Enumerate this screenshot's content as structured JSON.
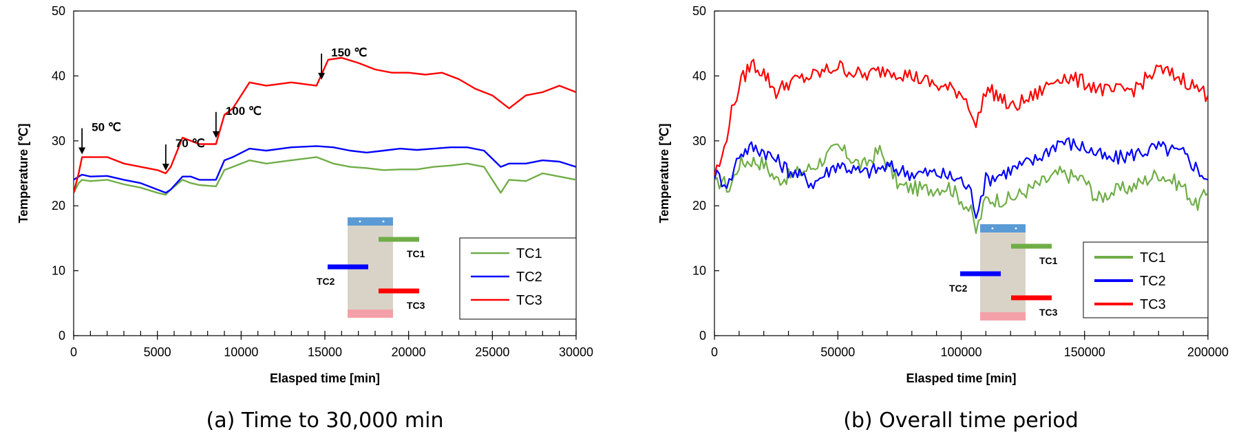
{
  "colors": {
    "TC1": "#70AD47",
    "TC2": "#0000FF",
    "TC3": "#FF0000",
    "cover": "#5B9BD5",
    "concrete": "#D9D3C7",
    "base": "#F4A0A8"
  },
  "chart_data": [
    {
      "type": "line",
      "caption": "(a) Time to 30,000 min",
      "xlabel": "Elasped time [min]",
      "ylabel": "Temperature [℃]",
      "xlim": [
        0,
        30000
      ],
      "ylim": [
        0,
        50
      ],
      "xticks": [
        0,
        5000,
        10000,
        15000,
        20000,
        25000,
        30000
      ],
      "yticks": [
        0,
        10,
        20,
        30,
        40,
        50
      ],
      "legend": [
        "TC1",
        "TC2",
        "TC3"
      ],
      "legend_position": "bottom-right",
      "sensor_labels": [
        "TC1",
        "TC2",
        "TC3"
      ],
      "annotations": [
        {
          "text": "50 ℃",
          "x": 500,
          "y": 27.5
        },
        {
          "text": "70 ℃",
          "x": 5500,
          "y": 25
        },
        {
          "text": "100 ℃",
          "x": 8500,
          "y": 30
        },
        {
          "text": "150 ℃",
          "x": 14800,
          "y": 39
        }
      ],
      "series": [
        {
          "name": "TC1",
          "x": [
            0,
            300,
            500,
            1000,
            2000,
            3000,
            4000,
            5000,
            5500,
            5800,
            6500,
            7000,
            7500,
            8500,
            9000,
            9500,
            10500,
            11500,
            13000,
            14500,
            15500,
            16500,
            17500,
            18500,
            19500,
            20500,
            21500,
            22500,
            23500,
            24500,
            25500,
            26000,
            27000,
            28000,
            29000,
            30000
          ],
          "y": [
            22,
            23.5,
            24,
            23.8,
            24,
            23.3,
            22.8,
            22,
            21.7,
            22.5,
            24,
            23.5,
            23.2,
            23,
            25.5,
            26,
            27,
            26.5,
            27,
            27.5,
            26.5,
            26,
            25.8,
            25.5,
            25.6,
            25.6,
            26,
            26.2,
            26.5,
            26,
            22,
            24,
            23.8,
            25,
            24.5,
            24
          ]
        },
        {
          "name": "TC2",
          "x": [
            0,
            300,
            500,
            1000,
            2000,
            3000,
            4000,
            5000,
            5500,
            5800,
            6500,
            7000,
            7500,
            8500,
            9000,
            9500,
            10500,
            11500,
            13000,
            14500,
            15500,
            16500,
            17500,
            18500,
            19500,
            20500,
            21500,
            22500,
            23500,
            24500,
            25500,
            26000,
            27000,
            28000,
            29000,
            30000
          ],
          "y": [
            24,
            24.5,
            24.8,
            24.5,
            24.6,
            24,
            23.5,
            22.5,
            22,
            22.5,
            24.5,
            24.5,
            24,
            24,
            27,
            27.5,
            28.8,
            28.5,
            29,
            29.2,
            29,
            28.5,
            28.2,
            28.5,
            28.8,
            28.6,
            28.8,
            29,
            29,
            28.5,
            26,
            26.5,
            26.5,
            27,
            26.8,
            26
          ]
        },
        {
          "name": "TC3",
          "x": [
            0,
            300,
            500,
            1000,
            2000,
            3000,
            4000,
            5000,
            5500,
            5800,
            6500,
            7000,
            7500,
            8500,
            9000,
            9500,
            10500,
            11500,
            13000,
            14500,
            15200,
            16000,
            17000,
            18000,
            19000,
            20000,
            21000,
            22000,
            23000,
            24000,
            25000,
            26000,
            27000,
            28000,
            29000,
            30000
          ],
          "y": [
            22,
            25,
            27.5,
            27.5,
            27.5,
            26.5,
            26,
            25.5,
            25,
            26,
            30.5,
            30,
            29.5,
            29.5,
            34,
            35,
            39,
            38.5,
            39,
            38.5,
            42.5,
            42.8,
            42,
            41,
            40.5,
            40.5,
            40.2,
            40.5,
            39.5,
            38,
            37,
            35,
            37,
            37.5,
            38.5,
            37.5
          ]
        }
      ]
    },
    {
      "type": "line",
      "caption": "(b) Overall time period",
      "xlabel": "Elasped time [min]",
      "ylabel": "Temperature [℃]",
      "xlim": [
        0,
        200000
      ],
      "ylim": [
        0,
        50
      ],
      "xticks": [
        0,
        50000,
        100000,
        150000,
        200000
      ],
      "yticks": [
        0,
        10,
        20,
        30,
        40,
        50
      ],
      "legend": [
        "TC1",
        "TC2",
        "TC3"
      ],
      "legend_position": "bottom-right",
      "sensor_labels": [
        "TC1",
        "TC2",
        "TC3"
      ],
      "series": [
        {
          "name": "TC1",
          "x": [
            0,
            3000,
            6000,
            10000,
            15000,
            20000,
            25000,
            30000,
            40000,
            50000,
            60000,
            67000,
            75000,
            85000,
            95000,
            100000,
            104000,
            106000,
            110000,
            120000,
            130000,
            140000,
            150000,
            155000,
            160000,
            170000,
            180000,
            190000,
            195000,
            200000
          ],
          "y": [
            23,
            24,
            22.5,
            26.5,
            27,
            26.5,
            24,
            24.5,
            26,
            29,
            26,
            28.5,
            23,
            22.5,
            23,
            21,
            19,
            16,
            21,
            21,
            23,
            25,
            24,
            21,
            22,
            23,
            25,
            23,
            20,
            22
          ]
        },
        {
          "name": "TC2",
          "x": [
            0,
            3000,
            6000,
            10000,
            15000,
            20000,
            25000,
            30000,
            40000,
            50000,
            60000,
            70000,
            80000,
            90000,
            100000,
            104000,
            106000,
            110000,
            120000,
            130000,
            140000,
            150000,
            160000,
            170000,
            180000,
            190000,
            195000,
            200000
          ],
          "y": [
            25,
            24,
            23.5,
            28,
            29,
            28.5,
            27,
            25.5,
            23.5,
            26.5,
            25,
            26,
            25,
            25,
            24,
            22,
            19,
            24,
            25.5,
            27,
            30,
            29,
            27,
            28,
            29,
            28,
            26,
            24
          ]
        },
        {
          "name": "TC3",
          "x": [
            0,
            3000,
            6000,
            10000,
            15000,
            20000,
            25000,
            30000,
            40000,
            50000,
            60000,
            70000,
            80000,
            90000,
            100000,
            104000,
            106000,
            110000,
            115000,
            120000,
            130000,
            140000,
            150000,
            160000,
            170000,
            180000,
            190000,
            200000
          ],
          "y": [
            25,
            27,
            33,
            38.5,
            42,
            40.5,
            37.5,
            39,
            40,
            41.5,
            40,
            41,
            40,
            38.5,
            37.5,
            35,
            32,
            38,
            37,
            35,
            37,
            40,
            39,
            37.5,
            38,
            41,
            39.5,
            37
          ]
        }
      ]
    }
  ]
}
